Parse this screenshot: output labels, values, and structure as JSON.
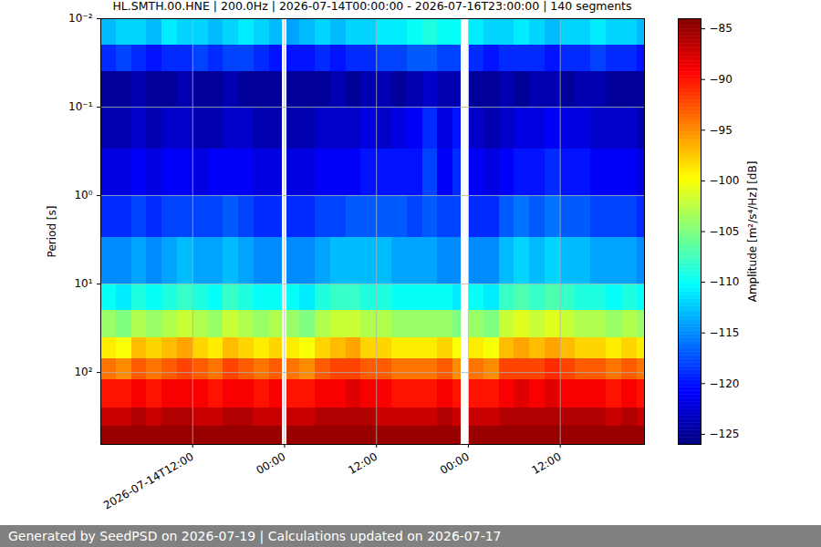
{
  "chart_data": {
    "type": "heatmap",
    "title": "HL.SMTH.00.HNE | 200.0Hz | 2026-07-14T00:00:00 - 2026-07-16T23:00:00 | 140 segments",
    "ylabel": "Period [s]",
    "footer": "Generated by SeedPSD on 2026-07-19 | Calculations updated on 2026-07-17",
    "log": "y",
    "grid": true,
    "color": "jet",
    "xlim": [
      "2026-07-14T00:00",
      "2026-07-16T23:00"
    ],
    "xticks": [
      {
        "value": "2026-07-14T12:00",
        "label": "2026-07-14T12:00"
      },
      {
        "value": "2026-07-15T00:00",
        "label": "00:00"
      },
      {
        "value": "2026-07-15T12:00",
        "label": "12:00"
      },
      {
        "value": "2026-07-16T00:00",
        "label": "00:00"
      },
      {
        "value": "2026-07-16T12:00",
        "label": "12:00"
      }
    ],
    "ylim": [
      0.01,
      650
    ],
    "yticks": [
      {
        "value": 0.01,
        "label": "10⁻²"
      },
      {
        "value": 0.1,
        "label": "10⁻¹"
      },
      {
        "value": 1,
        "label": "10⁰"
      },
      {
        "value": 10,
        "label": "10¹"
      },
      {
        "value": 100,
        "label": "10²"
      }
    ],
    "x": [
      "2026-07-14T00:00",
      "2026-07-14T02:00",
      "2026-07-14T04:00",
      "2026-07-14T06:00",
      "2026-07-14T08:00",
      "2026-07-14T10:00",
      "2026-07-14T12:00",
      "2026-07-14T14:00",
      "2026-07-14T16:00",
      "2026-07-14T18:00",
      "2026-07-14T20:00",
      "2026-07-14T22:00",
      "2026-07-14T23:40",
      "2026-07-15T00:15",
      "2026-07-15T02:00",
      "2026-07-15T04:00",
      "2026-07-15T06:00",
      "2026-07-15T08:00",
      "2026-07-15T10:00",
      "2026-07-15T12:00",
      "2026-07-15T14:00",
      "2026-07-15T16:00",
      "2026-07-15T18:00",
      "2026-07-15T20:00",
      "2026-07-15T22:00",
      "2026-07-15T23:00",
      "2026-07-16T00:05",
      "2026-07-16T02:00",
      "2026-07-16T04:00",
      "2026-07-16T06:00",
      "2026-07-16T08:00",
      "2026-07-16T10:00",
      "2026-07-16T12:00",
      "2026-07-16T14:00",
      "2026-07-16T16:00",
      "2026-07-16T18:00",
      "2026-07-16T20:00",
      "2026-07-16T22:00",
      "2026-07-16T23:00"
    ],
    "periods": [
      0.01,
      0.02,
      0.04,
      0.1,
      0.3,
      1,
      3,
      10,
      20,
      40,
      70,
      120,
      250,
      400,
      650
    ],
    "cells": [
      [
        -113,
        -112,
        -112,
        -113,
        -111,
        -112,
        -112,
        -113,
        -112,
        -111,
        -112,
        -113,
        null,
        -114,
        -113,
        -112,
        -113,
        -112,
        -112,
        -111,
        -111,
        -110,
        -109,
        -110,
        -110,
        null,
        -111,
        -112,
        -112,
        -111,
        -112,
        -113,
        -112,
        -112,
        -111,
        -112,
        -112,
        -113
      ],
      [
        -119,
        -118,
        -119,
        -120,
        -119,
        -119,
        -118,
        -119,
        -118,
        -118,
        -119,
        -120,
        null,
        -120,
        -120,
        -119,
        -120,
        -119,
        -119,
        -118,
        -118,
        -117,
        -117,
        -118,
        -118,
        null,
        -119,
        -120,
        -119,
        -119,
        -119,
        -120,
        -119,
        -119,
        -118,
        -119,
        -119,
        -120
      ],
      [
        -125,
        -125,
        -124,
        -125,
        -125,
        -124,
        -125,
        -125,
        -124,
        -125,
        -125,
        -125,
        null,
        -125,
        -125,
        -125,
        -124,
        -125,
        -124,
        -124,
        -125,
        -124,
        -123,
        -124,
        -124,
        null,
        -125,
        -125,
        -124,
        -125,
        -124,
        -124,
        -125,
        -124,
        -124,
        -125,
        -125,
        -125
      ],
      [
        -124,
        -124,
        -123,
        -124,
        -123,
        -123,
        -124,
        -124,
        -123,
        -123,
        -124,
        -124,
        null,
        -124,
        -124,
        -123,
        -123,
        -123,
        -122,
        -123,
        -122,
        -121,
        -119,
        -122,
        -120,
        null,
        -123,
        -124,
        -123,
        -122,
        -122,
        -121,
        -122,
        -122,
        -123,
        -123,
        -123,
        -124
      ],
      [
        -122,
        -122,
        -121,
        -122,
        -121,
        -121,
        -122,
        -121,
        -121,
        -121,
        -122,
        -122,
        null,
        -122,
        -122,
        -121,
        -121,
        -121,
        -120,
        -120,
        -120,
        -120,
        -118,
        -121,
        -119,
        null,
        -121,
        -122,
        -121,
        -120,
        -120,
        -119,
        -120,
        -120,
        -121,
        -121,
        -121,
        -122
      ],
      [
        -119,
        -119,
        -118,
        -119,
        -118,
        -118,
        -118,
        -118,
        -117,
        -118,
        -119,
        -119,
        null,
        -119,
        -119,
        -118,
        -118,
        -117,
        -117,
        -117,
        -117,
        -118,
        -117,
        -118,
        -118,
        null,
        -119,
        -119,
        -117,
        -116,
        -117,
        -116,
        -117,
        -117,
        -118,
        -118,
        -118,
        -119
      ],
      [
        -115,
        -115,
        -114,
        -115,
        -114,
        -113,
        -114,
        -114,
        -113,
        -114,
        -115,
        -115,
        null,
        -115,
        -115,
        -114,
        -113,
        -113,
        -113,
        -113,
        -114,
        -114,
        -114,
        -115,
        -115,
        null,
        -115,
        -115,
        -113,
        -112,
        -113,
        -112,
        -113,
        -113,
        -114,
        -114,
        -114,
        -115
      ],
      [
        -110,
        -111,
        -109,
        -110,
        -109,
        -108,
        -109,
        -110,
        -108,
        -109,
        -110,
        -110,
        null,
        -110,
        -111,
        -109,
        -108,
        -108,
        -109,
        -109,
        -110,
        -110,
        -110,
        -110,
        -111,
        null,
        -110,
        -111,
        -108,
        -107,
        -108,
        -107,
        -108,
        -109,
        -109,
        -110,
        -109,
        -110
      ],
      [
        -104,
        -105,
        -103,
        -104,
        -103,
        -102,
        -103,
        -104,
        -102,
        -103,
        -104,
        -103,
        null,
        -104,
        -105,
        -103,
        -102,
        -102,
        -103,
        -103,
        -104,
        -104,
        -104,
        -104,
        -105,
        null,
        -104,
        -105,
        -102,
        -101,
        -102,
        -101,
        -102,
        -103,
        -103,
        -104,
        -103,
        -104
      ],
      [
        -99,
        -100,
        -97,
        -98,
        -97,
        -96,
        -98,
        -99,
        -97,
        -98,
        -99,
        -98,
        null,
        -99,
        -100,
        -98,
        -97,
        -96,
        -98,
        -98,
        -99,
        -99,
        -99,
        -98,
        -100,
        null,
        -99,
        -100,
        -97,
        -96,
        -97,
        -96,
        -97,
        -98,
        -98,
        -99,
        -98,
        -99
      ],
      [
        -94,
        -95,
        -93,
        -94,
        -93,
        -92,
        -93,
        -94,
        -92,
        -93,
        -94,
        -93,
        null,
        -94,
        -95,
        -93,
        -92,
        -92,
        -93,
        -93,
        -94,
        -94,
        -94,
        -93,
        -95,
        null,
        -94,
        -95,
        -92,
        -92,
        -92,
        -91,
        -92,
        -93,
        -93,
        -94,
        -93,
        -94
      ],
      [
        -90,
        -90,
        -89,
        -90,
        -89,
        -89,
        -89,
        -90,
        -89,
        -89,
        -90,
        -89,
        null,
        -90,
        -90,
        -89,
        -89,
        -88,
        -89,
        -89,
        -90,
        -90,
        -90,
        -89,
        -90,
        null,
        -90,
        -90,
        -89,
        -88,
        -89,
        -88,
        -89,
        -89,
        -89,
        -90,
        -89,
        -90
      ],
      [
        -87,
        -87,
        -86,
        -87,
        -86,
        -86,
        -87,
        -87,
        -86,
        -86,
        -87,
        -87,
        null,
        -87,
        -87,
        -86,
        -86,
        -86,
        -86,
        -87,
        -87,
        -87,
        -87,
        -86,
        -87,
        null,
        -87,
        -87,
        -86,
        -86,
        -86,
        -86,
        -86,
        -86,
        -86,
        -87,
        -86,
        -87
      ],
      [
        -85,
        -85,
        -85,
        -85,
        -85,
        -85,
        -85,
        -85,
        -85,
        -85,
        -85,
        -85,
        null,
        -85,
        -85,
        -85,
        -85,
        -85,
        -85,
        -85,
        -85,
        -85,
        -85,
        -85,
        -85,
        null,
        -85,
        -85,
        -85,
        -85,
        -85,
        -85,
        -85,
        -85,
        -85,
        -85,
        -85,
        -85
      ]
    ],
    "colorbar": {
      "label": "Amplitude [m²/s⁴/Hz] [dB]",
      "lim": [
        -126,
        -84
      ],
      "ticks": [
        -85,
        -90,
        -95,
        -100,
        -105,
        -110,
        -115,
        -120,
        -125
      ]
    }
  }
}
